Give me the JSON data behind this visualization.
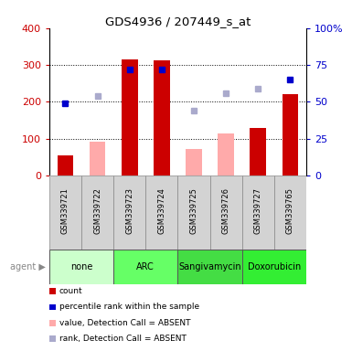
{
  "title": "GDS4936 / 207449_s_at",
  "samples": [
    "GSM339721",
    "GSM339722",
    "GSM339723",
    "GSM339724",
    "GSM339725",
    "GSM339726",
    "GSM339727",
    "GSM339765"
  ],
  "agents": [
    {
      "label": "none",
      "samples": [
        0,
        1
      ],
      "color": "#ccffcc"
    },
    {
      "label": "ARC",
      "samples": [
        2,
        3
      ],
      "color": "#66ff66"
    },
    {
      "label": "Sangivamycin",
      "samples": [
        4,
        5
      ],
      "color": "#44dd44"
    },
    {
      "label": "Doxorubicin",
      "samples": [
        6,
        7
      ],
      "color": "#33ee33"
    }
  ],
  "count_values": [
    55,
    null,
    315,
    312,
    null,
    null,
    130,
    220
  ],
  "count_absent": [
    null,
    92,
    null,
    null,
    72,
    115,
    null,
    null
  ],
  "rank_pct": [
    49,
    null,
    72,
    72,
    null,
    null,
    null,
    65
  ],
  "rank_absent_pct": [
    null,
    54,
    null,
    null,
    44,
    56,
    59,
    null
  ],
  "count_color": "#cc0000",
  "rank_color": "#0000cc",
  "count_absent_color": "#ffaaaa",
  "rank_absent_color": "#aaaacc",
  "ylim_left": [
    0,
    400
  ],
  "ylim_right": [
    0,
    100
  ],
  "yticks_left": [
    0,
    100,
    200,
    300,
    400
  ],
  "yticks_right": [
    0,
    25,
    50,
    75,
    100
  ],
  "legend_items": [
    {
      "color": "#cc0000",
      "label": "count"
    },
    {
      "color": "#0000cc",
      "label": "percentile rank within the sample"
    },
    {
      "color": "#ffaaaa",
      "label": "value, Detection Call = ABSENT"
    },
    {
      "color": "#aaaacc",
      "label": "rank, Detection Call = ABSENT"
    }
  ]
}
